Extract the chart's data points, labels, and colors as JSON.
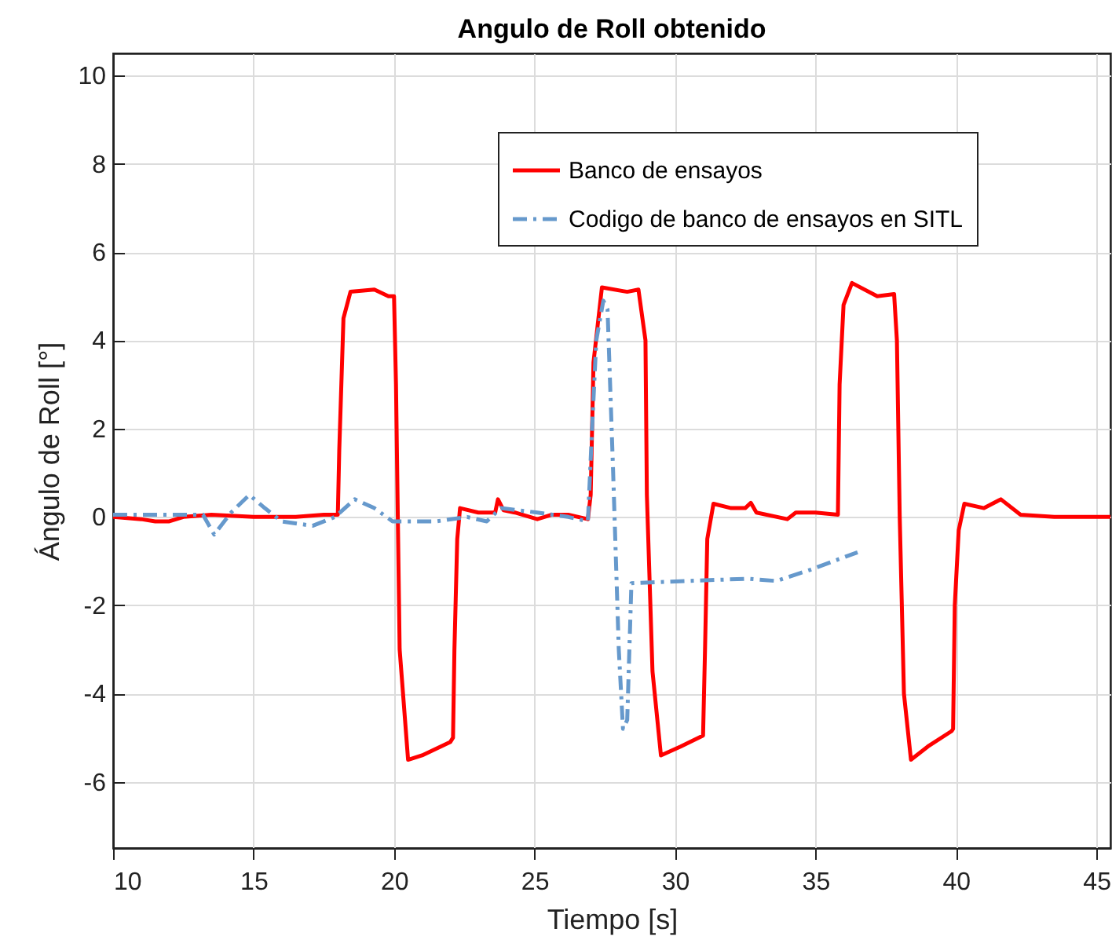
{
  "chart_data": {
    "type": "line",
    "title": "Angulo de Roll obtenido",
    "xlabel": "Tiempo [s]",
    "ylabel": "Ángulo de Roll [°]",
    "xlim": [
      10,
      45.5
    ],
    "ylim": [
      -7.5,
      10.5
    ],
    "xticks": [
      10,
      15,
      20,
      25,
      30,
      35,
      40,
      45
    ],
    "yticks": [
      -6,
      -4,
      -2,
      0,
      2,
      4,
      6,
      8,
      10
    ],
    "grid": true,
    "legend": "top right",
    "series": [
      {
        "name": "Banco de ensayos",
        "color": "#ff0000",
        "line_style": "solid",
        "x": [
          10,
          11,
          11.5,
          12,
          12.5,
          13.5,
          15,
          16.5,
          17.5,
          18.0,
          18.05,
          18.2,
          18.45,
          19.3,
          19.8,
          20.0,
          20.07,
          20.2,
          20.5,
          21.0,
          22.0,
          22.1,
          22.15,
          22.25,
          22.35,
          23.0,
          23.6,
          23.7,
          23.9,
          24.3,
          25.1,
          25.6,
          26.2,
          26.9,
          27.0,
          27.1,
          27.4,
          28.3,
          28.7,
          28.95,
          29.0,
          29.2,
          29.5,
          30.2,
          31.0,
          31.07,
          31.15,
          31.37,
          32.0,
          32.5,
          32.7,
          32.9,
          34.0,
          34.3,
          35.0,
          35.8,
          35.86,
          36.0,
          36.3,
          37.2,
          37.8,
          37.9,
          38.0,
          38.15,
          38.4,
          39.0,
          39.85,
          39.9,
          39.96,
          40.1,
          40.3,
          41.0,
          41.6,
          42.3,
          43.5,
          45.5
        ],
        "values": [
          0,
          -0.05,
          -0.1,
          -0.1,
          0,
          0.05,
          0,
          0,
          0.05,
          0.05,
          1.5,
          4.5,
          5.1,
          5.15,
          5.0,
          5.0,
          3,
          -3,
          -5.5,
          -5.4,
          -5.1,
          -5.0,
          -3,
          -0.5,
          0.2,
          0.1,
          0.1,
          0.4,
          0.15,
          0.1,
          -0.05,
          0.05,
          0.05,
          -0.05,
          0.5,
          3.5,
          5.2,
          5.1,
          5.15,
          4,
          0.5,
          -3.5,
          -5.4,
          -5.2,
          -4.95,
          -3,
          -0.5,
          0.3,
          0.2,
          0.2,
          0.32,
          0.1,
          -0.05,
          0.1,
          0.1,
          0.05,
          3,
          4.8,
          5.3,
          5.0,
          5.05,
          4,
          0,
          -4,
          -5.5,
          -5.2,
          -4.85,
          -4.8,
          -2,
          -0.3,
          0.3,
          0.2,
          0.4,
          0.05,
          0,
          0
        ]
      },
      {
        "name": "Codigo de banco de ensayos en SITL",
        "color": "#6699cc",
        "line_style": "dashdot",
        "x": [
          10,
          13.2,
          13.6,
          14.2,
          14.85,
          15.4,
          16,
          17.1,
          17.9,
          18.6,
          19.3,
          19.95,
          21.5,
          22.6,
          23.3,
          23.8,
          25.1,
          26.2,
          26.9,
          27.05,
          27.2,
          27.45,
          27.6,
          27.8,
          28.0,
          28.15,
          28.3,
          28.45,
          30.4,
          32.6,
          33.6,
          34.8,
          36.5
        ],
        "values": [
          0.05,
          0.05,
          -0.4,
          0.1,
          0.5,
          0.2,
          -0.1,
          -0.2,
          0,
          0.4,
          0.2,
          -0.1,
          -0.1,
          0,
          -0.1,
          0.2,
          0.1,
          0,
          -0.1,
          2,
          4,
          4.9,
          4.7,
          1,
          -3,
          -4.8,
          -4.6,
          -1.5,
          -1.45,
          -1.4,
          -1.45,
          -1.2,
          -0.8
        ]
      }
    ]
  }
}
